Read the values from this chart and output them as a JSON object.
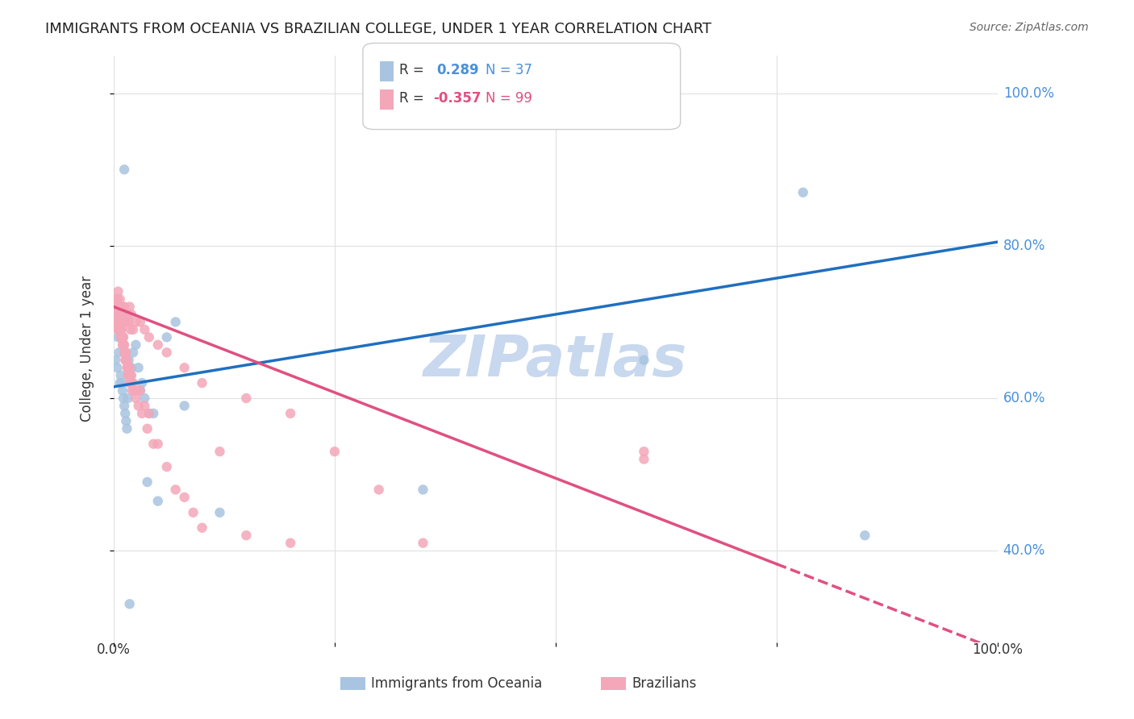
{
  "title": "IMMIGRANTS FROM OCEANIA VS BRAZILIAN COLLEGE, UNDER 1 YEAR CORRELATION CHART",
  "source": "Source: ZipAtlas.com",
  "ylabel": "College, Under 1 year",
  "ytick_labels": [
    "40.0%",
    "60.0%",
    "80.0%",
    "100.0%"
  ],
  "ytick_values": [
    0.4,
    0.6,
    0.8,
    1.0
  ],
  "xlim": [
    0.0,
    1.0
  ],
  "ylim": [
    0.28,
    1.05
  ],
  "legend_oceania": "Immigrants from Oceania",
  "legend_brazilians": "Brazilians",
  "R_oceania": 0.289,
  "N_oceania": 37,
  "R_brazilians": -0.357,
  "N_brazilians": 99,
  "oceania_color": "#a8c4e0",
  "brazilians_color": "#f4a7b9",
  "line_oceania_color": "#1f6fbf",
  "line_brazilians_color": "#e05080",
  "watermark_color": "#c8d8ee",
  "background_color": "#ffffff",
  "grid_color": "#e0e0e0",
  "oceania_x": [
    0.002,
    0.004,
    0.005,
    0.006,
    0.007,
    0.008,
    0.009,
    0.01,
    0.011,
    0.012,
    0.013,
    0.014,
    0.015,
    0.016,
    0.017,
    0.018,
    0.02,
    0.022,
    0.025,
    0.028,
    0.03,
    0.032,
    0.035,
    0.038,
    0.04,
    0.045,
    0.05,
    0.06,
    0.07,
    0.08,
    0.12,
    0.35,
    0.6,
    0.78,
    0.85,
    0.012,
    0.018
  ],
  "oceania_y": [
    0.65,
    0.64,
    0.68,
    0.66,
    0.62,
    0.63,
    0.62,
    0.61,
    0.6,
    0.59,
    0.58,
    0.57,
    0.56,
    0.6,
    0.65,
    0.63,
    0.64,
    0.66,
    0.67,
    0.64,
    0.61,
    0.62,
    0.6,
    0.49,
    0.58,
    0.58,
    0.465,
    0.68,
    0.7,
    0.59,
    0.45,
    0.48,
    0.65,
    0.87,
    0.42,
    0.9,
    0.33
  ],
  "brazilians_x": [
    0.001,
    0.002,
    0.002,
    0.003,
    0.003,
    0.004,
    0.004,
    0.004,
    0.005,
    0.005,
    0.005,
    0.006,
    0.006,
    0.006,
    0.006,
    0.007,
    0.007,
    0.007,
    0.008,
    0.008,
    0.008,
    0.009,
    0.009,
    0.01,
    0.01,
    0.01,
    0.011,
    0.011,
    0.012,
    0.012,
    0.013,
    0.013,
    0.014,
    0.014,
    0.015,
    0.015,
    0.016,
    0.016,
    0.017,
    0.017,
    0.018,
    0.018,
    0.019,
    0.02,
    0.02,
    0.021,
    0.022,
    0.023,
    0.025,
    0.026,
    0.028,
    0.03,
    0.032,
    0.035,
    0.038,
    0.04,
    0.045,
    0.05,
    0.06,
    0.07,
    0.08,
    0.09,
    0.1,
    0.12,
    0.15,
    0.2,
    0.25,
    0.3,
    0.35,
    0.6,
    0.004,
    0.005,
    0.006,
    0.007,
    0.008,
    0.009,
    0.01,
    0.011,
    0.012,
    0.013,
    0.014,
    0.015,
    0.016,
    0.017,
    0.018,
    0.019,
    0.02,
    0.022,
    0.025,
    0.03,
    0.035,
    0.04,
    0.05,
    0.06,
    0.08,
    0.1,
    0.15,
    0.2,
    0.6
  ],
  "brazilians_y": [
    0.7,
    0.72,
    0.73,
    0.72,
    0.71,
    0.7,
    0.71,
    0.72,
    0.69,
    0.71,
    0.69,
    0.7,
    0.69,
    0.7,
    0.71,
    0.7,
    0.69,
    0.7,
    0.7,
    0.69,
    0.68,
    0.68,
    0.69,
    0.68,
    0.67,
    0.68,
    0.67,
    0.68,
    0.67,
    0.66,
    0.65,
    0.66,
    0.65,
    0.66,
    0.64,
    0.65,
    0.64,
    0.63,
    0.64,
    0.63,
    0.64,
    0.62,
    0.63,
    0.62,
    0.63,
    0.61,
    0.62,
    0.61,
    0.6,
    0.61,
    0.59,
    0.61,
    0.58,
    0.59,
    0.56,
    0.58,
    0.54,
    0.54,
    0.51,
    0.48,
    0.47,
    0.45,
    0.43,
    0.53,
    0.42,
    0.41,
    0.53,
    0.48,
    0.41,
    0.52,
    0.73,
    0.74,
    0.71,
    0.73,
    0.72,
    0.71,
    0.72,
    0.71,
    0.72,
    0.7,
    0.71,
    0.7,
    0.71,
    0.7,
    0.72,
    0.69,
    0.71,
    0.69,
    0.7,
    0.7,
    0.69,
    0.68,
    0.67,
    0.66,
    0.64,
    0.62,
    0.6,
    0.58,
    0.53
  ]
}
